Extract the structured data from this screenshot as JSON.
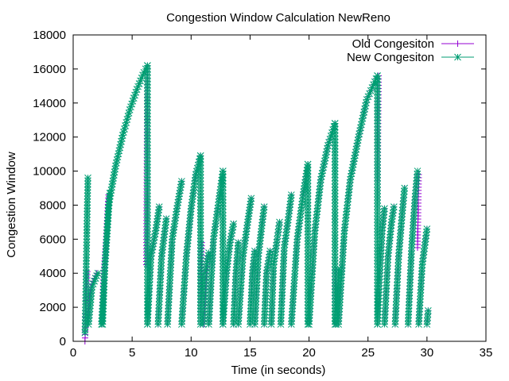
{
  "chart_data": {
    "type": "line",
    "title": "Congestion Window Calculation NewReno",
    "xlabel": "Time (in seconds)",
    "ylabel": "Congestion Window",
    "xlim": [
      0,
      35
    ],
    "ylim": [
      0,
      18000
    ],
    "xticks": [
      0,
      5,
      10,
      15,
      20,
      25,
      30,
      35
    ],
    "yticks": [
      0,
      2000,
      4000,
      6000,
      8000,
      10000,
      12000,
      14000,
      16000,
      18000
    ],
    "grid": false,
    "legend_position": "top-right",
    "series": [
      {
        "name": "Old Congesiton",
        "color": "#9400d3",
        "marker": "plus",
        "segments": [
          [
            [
              1.0,
              0
            ],
            [
              1.05,
              1000
            ],
            [
              1.1,
              2000
            ],
            [
              1.15,
              3000
            ],
            [
              1.2,
              4100
            ]
          ],
          [
            [
              1.2,
              1000
            ],
            [
              1.5,
              3200
            ],
            [
              1.8,
              3700
            ],
            [
              2.0,
              4000
            ]
          ],
          [
            [
              2.4,
              1000
            ],
            [
              2.6,
              4000
            ],
            [
              2.8,
              6000
            ],
            [
              3.0,
              8600
            ]
          ],
          [
            [
              6.2,
              4500
            ],
            [
              6.3,
              16200
            ]
          ],
          [
            [
              6.3,
              1000
            ],
            [
              6.6,
              5000
            ],
            [
              7.0,
              6500
            ],
            [
              7.3,
              7900
            ]
          ],
          [
            [
              7.2,
              1000
            ],
            [
              7.5,
              5000
            ],
            [
              7.9,
              7200
            ]
          ],
          [
            [
              8.0,
              1000
            ],
            [
              8.4,
              6000
            ],
            [
              8.8,
              7800
            ],
            [
              9.2,
              9400
            ]
          ],
          [
            [
              9.2,
              1000
            ],
            [
              9.6,
              5000
            ],
            [
              10.0,
              7800
            ],
            [
              10.4,
              9800
            ],
            [
              10.8,
              10900
            ]
          ],
          [
            [
              10.8,
              1000
            ],
            [
              10.9,
              5800
            ]
          ],
          [
            [
              11.1,
              1000
            ],
            [
              11.3,
              4000
            ],
            [
              11.5,
              5200
            ]
          ],
          [
            [
              11.5,
              1000
            ],
            [
              11.9,
              6000
            ],
            [
              12.3,
              8000
            ],
            [
              12.7,
              10000
            ]
          ],
          [
            [
              12.7,
              1000
            ],
            [
              13.0,
              4000
            ],
            [
              13.3,
              5800
            ],
            [
              13.6,
              6900
            ]
          ],
          [
            [
              13.6,
              1000
            ],
            [
              13.8,
              4000
            ],
            [
              14.0,
              5800
            ]
          ],
          [
            [
              14.0,
              1000
            ],
            [
              14.4,
              5000
            ],
            [
              14.8,
              7000
            ],
            [
              15.1,
              8400
            ]
          ],
          [
            [
              15.0,
              1000
            ],
            [
              15.2,
              4000
            ],
            [
              15.4,
              5300
            ]
          ],
          [
            [
              15.4,
              1000
            ],
            [
              15.7,
              5000
            ],
            [
              16.0,
              6800
            ],
            [
              16.2,
              7900
            ]
          ],
          [
            [
              16.2,
              1000
            ],
            [
              16.4,
              4000
            ],
            [
              16.7,
              5300
            ]
          ],
          [
            [
              16.8,
              1000
            ],
            [
              17.0,
              4500
            ],
            [
              17.3,
              6000
            ],
            [
              17.5,
              7000
            ]
          ],
          [
            [
              17.6,
              1000
            ],
            [
              17.9,
              5500
            ],
            [
              18.3,
              7500
            ],
            [
              18.5,
              8600
            ]
          ],
          [
            [
              18.5,
              1000
            ],
            [
              19.0,
              6000
            ],
            [
              19.5,
              8600
            ],
            [
              19.9,
              10400
            ]
          ],
          [
            [
              20.0,
              1000
            ],
            [
              20.5,
              6500
            ],
            [
              21.0,
              9500
            ],
            [
              21.6,
              11500
            ],
            [
              22.2,
              12800
            ]
          ],
          [
            [
              22.2,
              1000
            ],
            [
              22.3,
              4200
            ]
          ],
          [
            [
              22.5,
              1000
            ],
            [
              23.0,
              6500
            ],
            [
              23.5,
              9500
            ],
            [
              24.2,
              12000
            ],
            [
              24.9,
              14200
            ],
            [
              25.8,
              15600
            ]
          ],
          [
            [
              25.8,
              8300
            ],
            [
              25.9,
              15600
            ]
          ],
          [
            [
              25.8,
              1000
            ],
            [
              26.0,
              4000
            ],
            [
              26.2,
              6500
            ],
            [
              26.4,
              7800
            ]
          ],
          [
            [
              26.4,
              1000
            ],
            [
              26.7,
              5000
            ],
            [
              27.0,
              7000
            ],
            [
              27.2,
              7900
            ]
          ],
          [
            [
              27.3,
              1000
            ],
            [
              27.6,
              5000
            ],
            [
              27.9,
              7500
            ],
            [
              28.1,
              9000
            ]
          ],
          [
            [
              28.4,
              1000
            ],
            [
              28.7,
              5500
            ],
            [
              29.0,
              8500
            ],
            [
              29.2,
              10000
            ]
          ],
          [
            [
              29.2,
              5500
            ],
            [
              29.3,
              9800
            ]
          ],
          [
            [
              29.3,
              1000
            ],
            [
              29.6,
              4500
            ],
            [
              30.0,
              6600
            ]
          ],
          [
            [
              30.0,
              1000
            ],
            [
              30.1,
              1800
            ]
          ]
        ]
      },
      {
        "name": "New Congesiton",
        "color": "#009e73",
        "marker": "cross",
        "segments": [
          [
            [
              1.0,
              500
            ],
            [
              1.05,
              2000
            ],
            [
              1.1,
              4000
            ],
            [
              1.15,
              6000
            ],
            [
              1.2,
              8000
            ],
            [
              1.25,
              9600
            ]
          ],
          [
            [
              1.3,
              1000
            ],
            [
              1.6,
              3200
            ],
            [
              1.9,
              3700
            ],
            [
              2.1,
              4000
            ]
          ],
          [
            [
              2.5,
              1000
            ],
            [
              2.7,
              4500
            ],
            [
              2.9,
              6500
            ],
            [
              3.1,
              8700
            ]
          ],
          [
            [
              2.4,
              1000
            ],
            [
              3.0,
              8000
            ],
            [
              3.6,
              10300
            ],
            [
              4.2,
              12100
            ],
            [
              4.8,
              13600
            ],
            [
              5.4,
              14800
            ],
            [
              6.0,
              15800
            ],
            [
              6.3,
              16200
            ]
          ],
          [
            [
              6.3,
              16200
            ],
            [
              6.3,
              1000
            ]
          ],
          [
            [
              6.3,
              1000
            ],
            [
              6.6,
              5000
            ],
            [
              7.0,
              6500
            ],
            [
              7.3,
              7900
            ]
          ],
          [
            [
              7.2,
              1000
            ],
            [
              7.5,
              5000
            ],
            [
              7.9,
              7200
            ]
          ],
          [
            [
              8.0,
              1000
            ],
            [
              8.4,
              6000
            ],
            [
              8.8,
              7800
            ],
            [
              9.2,
              9400
            ]
          ],
          [
            [
              9.2,
              1000
            ],
            [
              9.6,
              5000
            ],
            [
              10.0,
              7800
            ],
            [
              10.4,
              9800
            ],
            [
              10.8,
              10900
            ]
          ],
          [
            [
              10.8,
              10900
            ],
            [
              10.8,
              1000
            ]
          ],
          [
            [
              11.0,
              1000
            ],
            [
              11.2,
              4000
            ],
            [
              11.5,
              5200
            ]
          ],
          [
            [
              11.5,
              1000
            ],
            [
              11.9,
              6000
            ],
            [
              12.3,
              8000
            ],
            [
              12.7,
              10000
            ]
          ],
          [
            [
              12.7,
              10000
            ],
            [
              12.7,
              1000
            ]
          ],
          [
            [
              12.7,
              1000
            ],
            [
              13.0,
              4000
            ],
            [
              13.3,
              5800
            ],
            [
              13.6,
              6900
            ]
          ],
          [
            [
              13.6,
              1000
            ],
            [
              13.8,
              4000
            ],
            [
              14.0,
              5800
            ]
          ],
          [
            [
              14.0,
              1000
            ],
            [
              14.4,
              5000
            ],
            [
              14.8,
              7000
            ],
            [
              15.1,
              8400
            ]
          ],
          [
            [
              15.0,
              1000
            ],
            [
              15.2,
              4000
            ],
            [
              15.4,
              5300
            ]
          ],
          [
            [
              15.4,
              1000
            ],
            [
              15.7,
              5000
            ],
            [
              16.0,
              6800
            ],
            [
              16.2,
              7900
            ]
          ],
          [
            [
              16.2,
              1000
            ],
            [
              16.4,
              4000
            ],
            [
              16.7,
              5300
            ]
          ],
          [
            [
              16.8,
              1000
            ],
            [
              17.0,
              4500
            ],
            [
              17.3,
              6000
            ],
            [
              17.5,
              7000
            ]
          ],
          [
            [
              17.6,
              1000
            ],
            [
              17.9,
              5500
            ],
            [
              18.3,
              7500
            ],
            [
              18.5,
              8600
            ]
          ],
          [
            [
              18.5,
              1000
            ],
            [
              19.0,
              6000
            ],
            [
              19.5,
              8600
            ],
            [
              19.9,
              10400
            ]
          ],
          [
            [
              19.9,
              10400
            ],
            [
              19.9,
              1000
            ]
          ],
          [
            [
              20.0,
              1000
            ],
            [
              20.5,
              6500
            ],
            [
              21.0,
              9500
            ],
            [
              21.6,
              11500
            ],
            [
              22.2,
              12800
            ]
          ],
          [
            [
              22.2,
              12800
            ],
            [
              22.2,
              1000
            ]
          ],
          [
            [
              22.3,
              1000
            ],
            [
              22.5,
              4200
            ]
          ],
          [
            [
              22.5,
              1000
            ],
            [
              23.0,
              6500
            ],
            [
              23.5,
              9500
            ],
            [
              24.2,
              12000
            ],
            [
              24.9,
              14200
            ],
            [
              25.8,
              15600
            ]
          ],
          [
            [
              25.8,
              15600
            ],
            [
              25.8,
              1000
            ]
          ],
          [
            [
              25.8,
              1000
            ],
            [
              26.0,
              4000
            ],
            [
              26.2,
              6500
            ],
            [
              26.4,
              7800
            ]
          ],
          [
            [
              26.4,
              1000
            ],
            [
              26.7,
              5000
            ],
            [
              27.0,
              7000
            ],
            [
              27.2,
              7900
            ]
          ],
          [
            [
              27.3,
              1000
            ],
            [
              27.6,
              5000
            ],
            [
              27.9,
              7500
            ],
            [
              28.1,
              9000
            ]
          ],
          [
            [
              28.4,
              1000
            ],
            [
              28.7,
              5500
            ],
            [
              29.0,
              8500
            ],
            [
              29.2,
              10000
            ]
          ],
          [
            [
              29.3,
              1000
            ],
            [
              29.6,
              4500
            ],
            [
              30.0,
              6600
            ]
          ],
          [
            [
              30.0,
              1000
            ],
            [
              30.1,
              1800
            ]
          ]
        ]
      }
    ]
  }
}
